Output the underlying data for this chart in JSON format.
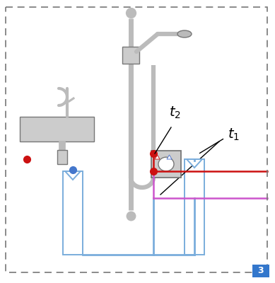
{
  "bg_color": "#ffffff",
  "border_color": "#777777",
  "blue_pipe_color": "#7aaddc",
  "red_pipe_color": "#cc1111",
  "magenta_pipe_color": "#cc55cc",
  "gray_color": "#aaaaaa",
  "dark_gray": "#777777",
  "light_gray": "#cccccc",
  "mid_gray": "#bbbbbb",
  "red_dot_color": "#cc1111",
  "blue_dot_color": "#4477cc",
  "fig_width": 3.89,
  "fig_height": 4.0,
  "dpi": 100
}
